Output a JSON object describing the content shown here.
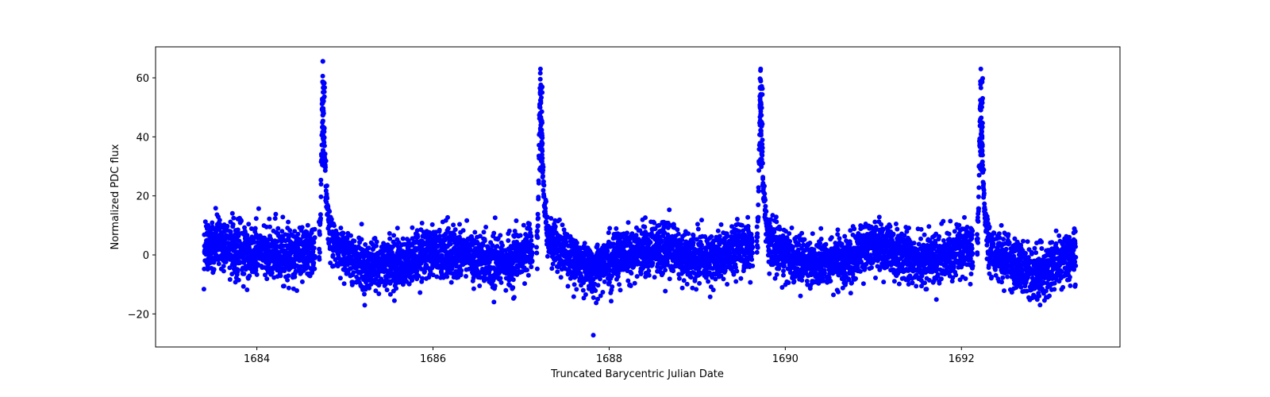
{
  "chart_data": {
    "type": "scatter",
    "title": "",
    "xlabel": "Truncated Barycentric Julian Date",
    "ylabel": "Normalized PDC flux",
    "xlim": [
      1682.85,
      1693.8
    ],
    "ylim": [
      -31.2,
      70.5
    ],
    "xticks": [
      1684,
      1686,
      1688,
      1690,
      1692
    ],
    "xtick_labels": [
      "1684",
      "1686",
      "1688",
      "1690",
      "1692"
    ],
    "yticks": [
      -20,
      0,
      20,
      40,
      60
    ],
    "ytick_labels": [
      "−20",
      "0",
      "20",
      "40",
      "60"
    ],
    "grid": false,
    "legend": null,
    "marker_color": "#0000ff",
    "marker_size": 3,
    "x_range_data": [
      1683.4,
      1693.3
    ],
    "baseline_noise_sigma": 4.2,
    "baseline_modulation": [
      {
        "x": 1683.4,
        "y": 4
      },
      {
        "x": 1684.0,
        "y": 1
      },
      {
        "x": 1684.4,
        "y": 0
      },
      {
        "x": 1684.7,
        "y": 2
      },
      {
        "x": 1684.85,
        "y": 3
      },
      {
        "x": 1685.3,
        "y": -4
      },
      {
        "x": 1685.6,
        "y": -3
      },
      {
        "x": 1686.0,
        "y": 1
      },
      {
        "x": 1686.4,
        "y": 0
      },
      {
        "x": 1686.8,
        "y": -3
      },
      {
        "x": 1687.15,
        "y": 2
      },
      {
        "x": 1687.3,
        "y": 3
      },
      {
        "x": 1687.8,
        "y": -4
      },
      {
        "x": 1688.2,
        "y": 0
      },
      {
        "x": 1688.6,
        "y": 3
      },
      {
        "x": 1689.0,
        "y": -2
      },
      {
        "x": 1689.6,
        "y": 3
      },
      {
        "x": 1689.8,
        "y": 2
      },
      {
        "x": 1690.3,
        "y": -3
      },
      {
        "x": 1690.7,
        "y": -2
      },
      {
        "x": 1691.0,
        "y": 3
      },
      {
        "x": 1691.6,
        "y": -2
      },
      {
        "x": 1692.1,
        "y": 3
      },
      {
        "x": 1692.3,
        "y": 0
      },
      {
        "x": 1692.9,
        "y": -6
      },
      {
        "x": 1693.3,
        "y": 0
      }
    ],
    "flares": [
      {
        "peak_x": 1684.75,
        "peak_y": 65.6
      },
      {
        "peak_x": 1687.22,
        "peak_y": 63.0
      },
      {
        "peak_x": 1689.72,
        "peak_y": 63.0
      },
      {
        "peak_x": 1692.22,
        "peak_y": 63.0
      }
    ],
    "outliers": [
      {
        "x": 1687.82,
        "y": -27.2
      }
    ],
    "approx_point_count": 7000
  }
}
